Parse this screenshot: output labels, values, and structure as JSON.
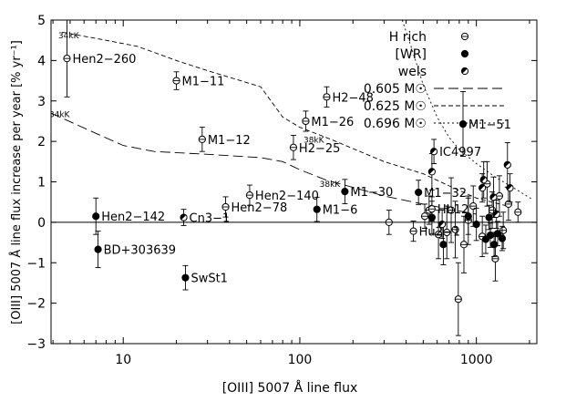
{
  "chart_data": {
    "type": "scatter",
    "title": "",
    "xlabel": "[OIII] 5007 Å line flux",
    "ylabel": "[OIII] 5007 Å line flux increase per year [% yr⁻¹]",
    "x_scale": "log",
    "xlim": [
      3.9,
      2200
    ],
    "ylim": [
      -3,
      5
    ],
    "x_ticks": [
      10,
      100,
      1000
    ],
    "x_tick_labels": [
      "10",
      "100",
      "1000"
    ],
    "y_ticks": [
      -3,
      -2,
      -1,
      0,
      1,
      2,
      3,
      4,
      5
    ],
    "y_tick_labels": [
      "−3",
      "−2",
      "−1",
      "0",
      "1",
      "2",
      "3",
      "4",
      "5"
    ],
    "zero_line": 0,
    "grid": false,
    "legend_position": "top-right",
    "legend": [
      {
        "label": "H rich",
        "symbol": "circle-dot"
      },
      {
        "label": "[WR]",
        "symbol": "filled"
      },
      {
        "label": "wels",
        "symbol": "half"
      },
      {
        "label": "0.605 M☉",
        "symbol": "long-dash"
      },
      {
        "label": "0.625 M☉",
        "symbol": "short-dash"
      },
      {
        "label": "0.696 M☉",
        "symbol": "dot"
      }
    ],
    "model_curves": [
      {
        "name": "0.605 M☉",
        "style": "long-dash",
        "points": [
          [
            3.9,
            2.7
          ],
          [
            7,
            2.2
          ],
          [
            10,
            1.9
          ],
          [
            15,
            1.75
          ],
          [
            30,
            1.68
          ],
          [
            60,
            1.6
          ],
          [
            80,
            1.5
          ],
          [
            100,
            1.3
          ],
          [
            140,
            1.05
          ],
          [
            300,
            0.65
          ],
          [
            500,
            0.45
          ],
          [
            1000,
            0.2
          ]
        ]
      },
      {
        "name": "0.625 M☉",
        "style": "short-dash",
        "points": [
          [
            4.5,
            4.7
          ],
          [
            8,
            4.5
          ],
          [
            12,
            4.35
          ],
          [
            20,
            4.0
          ],
          [
            30,
            3.75
          ],
          [
            60,
            3.35
          ],
          [
            80,
            2.6
          ],
          [
            100,
            2.35
          ],
          [
            150,
            2.05
          ],
          [
            300,
            1.5
          ],
          [
            500,
            1.2
          ],
          [
            700,
            0.9
          ],
          [
            1000,
            0.6
          ],
          [
            1500,
            0.4
          ]
        ]
      },
      {
        "name": "0.696 M☉",
        "style": "dot",
        "points": [
          [
            380,
            5.0
          ],
          [
            430,
            4.3
          ],
          [
            500,
            3.4
          ],
          [
            600,
            2.6
          ],
          [
            700,
            2.1
          ],
          [
            800,
            1.8
          ],
          [
            1000,
            1.45
          ],
          [
            1300,
            1.1
          ],
          [
            1700,
            0.8
          ],
          [
            2100,
            0.55
          ]
        ]
      }
    ],
    "curve_annotations": [
      {
        "text": "34kK",
        "x": 4.9,
        "y": 4.55
      },
      {
        "text": "34kK",
        "x": 4.35,
        "y": 2.6
      },
      {
        "text": "38kK",
        "x": 120,
        "y": 1.97
      },
      {
        "text": "38kK",
        "x": 148,
        "y": 0.88
      }
    ],
    "labeled_points": [
      {
        "name": "Hen2−260",
        "type": "H rich",
        "x": 4.8,
        "y": 4.05,
        "err": 0.95
      },
      {
        "name": "M1−11",
        "type": "H rich",
        "x": 20,
        "y": 3.5,
        "err": 0.22
      },
      {
        "name": "M1−12",
        "type": "H rich",
        "x": 28,
        "y": 2.05,
        "err": 0.3
      },
      {
        "name": "H2−48",
        "type": "H rich",
        "x": 142,
        "y": 3.1,
        "err": 0.25
      },
      {
        "name": "M1−26",
        "type": "H rich",
        "x": 108,
        "y": 2.5,
        "err": 0.25
      },
      {
        "name": "H2−25",
        "type": "H rich",
        "x": 92,
        "y": 1.85,
        "err": 0.3
      },
      {
        "name": "M1−51",
        "type": "[WR]",
        "x": 840,
        "y": 2.43,
        "err": 0.8
      },
      {
        "name": "IC4997",
        "type": "wels",
        "x": 575,
        "y": 1.75,
        "err": 0.3
      },
      {
        "name": "Hen2−140",
        "type": "H rich",
        "x": 52,
        "y": 0.67,
        "err": 0.25
      },
      {
        "name": "Hen2−78",
        "type": "H rich",
        "x": 38,
        "y": 0.38,
        "err": 0.25
      },
      {
        "name": "M1−30",
        "type": "[WR]",
        "x": 180,
        "y": 0.76,
        "err": 0.3
      },
      {
        "name": "M1−6",
        "type": "[WR]",
        "x": 125,
        "y": 0.32,
        "err": 0.3
      },
      {
        "name": "M1−32",
        "type": "[WR]",
        "x": 470,
        "y": 0.74,
        "err": 0.3
      },
      {
        "name": "Hb12",
        "type": "H rich",
        "x": 560,
        "y": 0.33,
        "err": 0.3
      },
      {
        "name": "Hu2−1",
        "type": "H rich",
        "x": 440,
        "y": -0.22,
        "err": 0.25
      },
      {
        "name": "Hen2−142",
        "type": "[WR]",
        "x": 7,
        "y": 0.15,
        "err": 0.45
      },
      {
        "name": "Cn3−1",
        "type": "wels",
        "x": 22,
        "y": 0.12,
        "err": 0.2
      },
      {
        "name": "BD+303639",
        "type": "[WR]",
        "x": 7.2,
        "y": -0.67,
        "err": 0.45
      },
      {
        "name": "SwSt1",
        "type": "[WR]",
        "x": 22.5,
        "y": -1.37,
        "err": 0.3
      }
    ],
    "unlabeled_points": [
      {
        "type": "H rich",
        "x": 320,
        "y": 0.0,
        "err": 0.3
      },
      {
        "type": "H rich",
        "x": 510,
        "y": 0.15,
        "err": 0.3
      },
      {
        "type": "H rich",
        "x": 540,
        "y": 0.3,
        "err": 0.35
      },
      {
        "type": "H rich",
        "x": 610,
        "y": -0.3,
        "err": 0.6
      },
      {
        "type": "H rich",
        "x": 680,
        "y": -0.25,
        "err": 0.65
      },
      {
        "type": "H rich",
        "x": 720,
        "y": 0.3,
        "err": 0.8
      },
      {
        "type": "H rich",
        "x": 760,
        "y": -0.18,
        "err": 0.7
      },
      {
        "type": "H rich",
        "x": 790,
        "y": -1.9,
        "err": 0.9
      },
      {
        "type": "H rich",
        "x": 850,
        "y": -0.55,
        "err": 0.7
      },
      {
        "type": "H rich",
        "x": 900,
        "y": 0.05,
        "err": 0.6
      },
      {
        "type": "H rich",
        "x": 960,
        "y": 0.4,
        "err": 0.5
      },
      {
        "type": "H rich",
        "x": 1080,
        "y": -0.35,
        "err": 0.5
      },
      {
        "type": "H rich",
        "x": 1150,
        "y": 0.95,
        "err": 0.55
      },
      {
        "type": "H rich",
        "x": 1230,
        "y": 0.3,
        "err": 0.45
      },
      {
        "type": "H rich",
        "x": 1280,
        "y": -0.9,
        "err": 0.55
      },
      {
        "type": "H rich",
        "x": 1350,
        "y": 0.65,
        "err": 0.5
      },
      {
        "type": "H rich",
        "x": 1420,
        "y": -0.2,
        "err": 0.45
      },
      {
        "type": "H rich",
        "x": 1520,
        "y": 0.45,
        "err": 0.4
      },
      {
        "type": "H rich",
        "x": 1720,
        "y": 0.25,
        "err": 0.25
      },
      {
        "type": "[WR]",
        "x": 560,
        "y": 0.12,
        "err": 0.4
      },
      {
        "type": "[WR]",
        "x": 650,
        "y": -0.55,
        "err": 0.5
      },
      {
        "type": "[WR]",
        "x": 900,
        "y": 0.15,
        "err": 0.45
      },
      {
        "type": "[WR]",
        "x": 1000,
        "y": -0.05,
        "err": 0.4
      },
      {
        "type": "[WR]",
        "x": 1130,
        "y": -0.42,
        "err": 0.35
      },
      {
        "type": "[WR]",
        "x": 1200,
        "y": -0.32,
        "err": 0.3
      },
      {
        "type": "[WR]",
        "x": 1260,
        "y": -0.55,
        "err": 0.3
      },
      {
        "type": "[WR]",
        "x": 1320,
        "y": -0.28,
        "err": 0.3
      },
      {
        "type": "[WR]",
        "x": 1400,
        "y": -0.4,
        "err": 0.3
      },
      {
        "type": "[WR]",
        "x": 1180,
        "y": 0.12,
        "err": 0.3
      },
      {
        "type": "wels",
        "x": 560,
        "y": 1.25,
        "err": 0.45
      },
      {
        "type": "wels",
        "x": 1100,
        "y": 1.05,
        "err": 0.45
      },
      {
        "type": "wels",
        "x": 1250,
        "y": 0.62,
        "err": 0.5
      },
      {
        "type": "wels",
        "x": 1500,
        "y": 1.42,
        "err": 0.55
      },
      {
        "type": "wels",
        "x": 1550,
        "y": 0.85,
        "err": 0.35
      },
      {
        "type": "wels",
        "x": 1080,
        "y": 0.85,
        "err": 0.35
      },
      {
        "type": "wels",
        "x": 1300,
        "y": 0.2,
        "err": 0.35
      },
      {
        "type": "wels",
        "x": 640,
        "y": -0.05,
        "err": 0.35
      }
    ]
  }
}
